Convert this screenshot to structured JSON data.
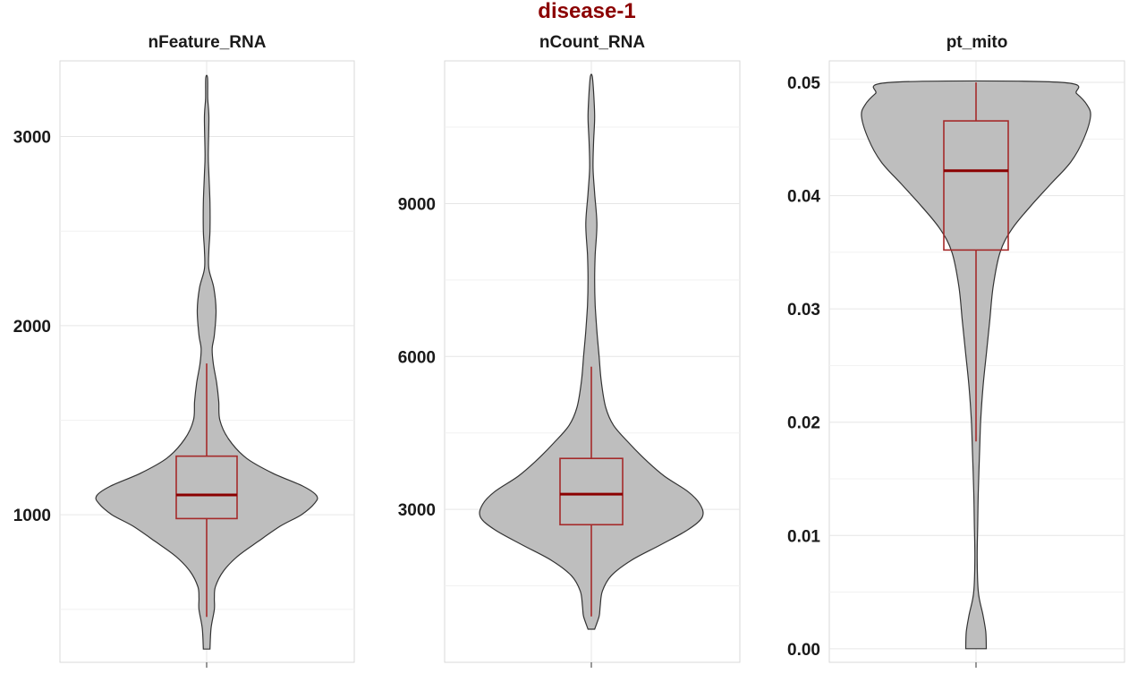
{
  "title": "disease-1",
  "colors": {
    "title": "#8b0000",
    "box": "#a52a2a",
    "median": "#8b0000",
    "violin_fill": "#bebebe",
    "violin_outline": "#333333"
  },
  "chart_data": [
    {
      "type": "violin",
      "title": "nFeature_RNA",
      "xlabel": "",
      "ylabel": "",
      "ylim": [
        220,
        3400
      ],
      "yticks": [
        1000,
        2000,
        3000
      ],
      "grid": true,
      "violin": [
        {
          "y": 290,
          "w": 0.03
        },
        {
          "y": 400,
          "w": 0.04
        },
        {
          "y": 500,
          "w": 0.07
        },
        {
          "y": 560,
          "w": 0.07
        },
        {
          "y": 620,
          "w": 0.08
        },
        {
          "y": 700,
          "w": 0.15
        },
        {
          "y": 780,
          "w": 0.28
        },
        {
          "y": 860,
          "w": 0.47
        },
        {
          "y": 940,
          "w": 0.67
        },
        {
          "y": 1000,
          "w": 0.86
        },
        {
          "y": 1060,
          "w": 0.98
        },
        {
          "y": 1100,
          "w": 1.0
        },
        {
          "y": 1150,
          "w": 0.88
        },
        {
          "y": 1220,
          "w": 0.6
        },
        {
          "y": 1300,
          "w": 0.36
        },
        {
          "y": 1400,
          "w": 0.2
        },
        {
          "y": 1500,
          "w": 0.12
        },
        {
          "y": 1600,
          "w": 0.11
        },
        {
          "y": 1700,
          "w": 0.09
        },
        {
          "y": 1800,
          "w": 0.06
        },
        {
          "y": 1880,
          "w": 0.05
        },
        {
          "y": 1950,
          "w": 0.07
        },
        {
          "y": 2080,
          "w": 0.085
        },
        {
          "y": 2200,
          "w": 0.065
        },
        {
          "y": 2300,
          "w": 0.02
        },
        {
          "y": 2400,
          "w": 0.02
        },
        {
          "y": 2500,
          "w": 0.03
        },
        {
          "y": 2650,
          "w": 0.03
        },
        {
          "y": 2800,
          "w": 0.02
        },
        {
          "y": 2900,
          "w": 0.015
        },
        {
          "y": 3100,
          "w": 0.02
        },
        {
          "y": 3200,
          "w": 0.01
        },
        {
          "y": 3310,
          "w": 0.008
        }
      ],
      "box": {
        "lower_whisker": 460,
        "q1": 980,
        "median": 1105,
        "q3": 1310,
        "upper_whisker": 1800
      }
    },
    {
      "type": "violin",
      "title": "nCount_RNA",
      "xlabel": "",
      "ylabel": "",
      "ylim": [
        0,
        11800
      ],
      "yticks": [
        3000,
        6000,
        9000
      ],
      "grid": true,
      "violin": [
        {
          "y": 650,
          "w": 0.03
        },
        {
          "y": 900,
          "w": 0.07
        },
        {
          "y": 1100,
          "w": 0.08
        },
        {
          "y": 1400,
          "w": 0.1
        },
        {
          "y": 1700,
          "w": 0.18
        },
        {
          "y": 2000,
          "w": 0.36
        },
        {
          "y": 2300,
          "w": 0.62
        },
        {
          "y": 2600,
          "w": 0.87
        },
        {
          "y": 2850,
          "w": 1.0
        },
        {
          "y": 3100,
          "w": 0.98
        },
        {
          "y": 3350,
          "w": 0.87
        },
        {
          "y": 3650,
          "w": 0.66
        },
        {
          "y": 3950,
          "w": 0.5
        },
        {
          "y": 4300,
          "w": 0.34
        },
        {
          "y": 4650,
          "w": 0.2
        },
        {
          "y": 5000,
          "w": 0.13
        },
        {
          "y": 5500,
          "w": 0.09
        },
        {
          "y": 6000,
          "w": 0.07
        },
        {
          "y": 6500,
          "w": 0.05
        },
        {
          "y": 7000,
          "w": 0.035
        },
        {
          "y": 7500,
          "w": 0.03
        },
        {
          "y": 8000,
          "w": 0.035
        },
        {
          "y": 8600,
          "w": 0.05
        },
        {
          "y": 9200,
          "w": 0.03
        },
        {
          "y": 9700,
          "w": 0.015
        },
        {
          "y": 10200,
          "w": 0.02
        },
        {
          "y": 10700,
          "w": 0.03
        },
        {
          "y": 11200,
          "w": 0.02
        },
        {
          "y": 11500,
          "w": 0.008
        }
      ],
      "box": {
        "lower_whisker": 900,
        "q1": 2700,
        "median": 3300,
        "q3": 4000,
        "upper_whisker": 5800
      }
    },
    {
      "type": "violin",
      "title": "pt_mito",
      "xlabel": "",
      "ylabel": "",
      "ylim": [
        -0.0012,
        0.0519
      ],
      "yticks": [
        0.0,
        0.01,
        0.02,
        0.03,
        0.04,
        0.05
      ],
      "grid": true,
      "violin": [
        {
          "y": 0.0,
          "w": 0.09
        },
        {
          "y": 0.0015,
          "w": 0.085
        },
        {
          "y": 0.003,
          "w": 0.06
        },
        {
          "y": 0.005,
          "w": 0.02
        },
        {
          "y": 0.008,
          "w": 0.01
        },
        {
          "y": 0.011,
          "w": 0.015
        },
        {
          "y": 0.014,
          "w": 0.02
        },
        {
          "y": 0.017,
          "w": 0.03
        },
        {
          "y": 0.02,
          "w": 0.04
        },
        {
          "y": 0.023,
          "w": 0.06
        },
        {
          "y": 0.026,
          "w": 0.09
        },
        {
          "y": 0.029,
          "w": 0.12
        },
        {
          "y": 0.032,
          "w": 0.15
        },
        {
          "y": 0.035,
          "w": 0.21
        },
        {
          "y": 0.037,
          "w": 0.31
        },
        {
          "y": 0.039,
          "w": 0.47
        },
        {
          "y": 0.041,
          "w": 0.65
        },
        {
          "y": 0.043,
          "w": 0.83
        },
        {
          "y": 0.045,
          "w": 0.94
        },
        {
          "y": 0.047,
          "w": 1.0
        },
        {
          "y": 0.048,
          "w": 0.97
        },
        {
          "y": 0.049,
          "w": 0.88
        },
        {
          "y": 0.05,
          "w": 0.74
        }
      ],
      "box": {
        "lower_whisker": 0.0183,
        "q1": 0.0352,
        "median": 0.0422,
        "q3": 0.0466,
        "upper_whisker": 0.05
      }
    }
  ]
}
